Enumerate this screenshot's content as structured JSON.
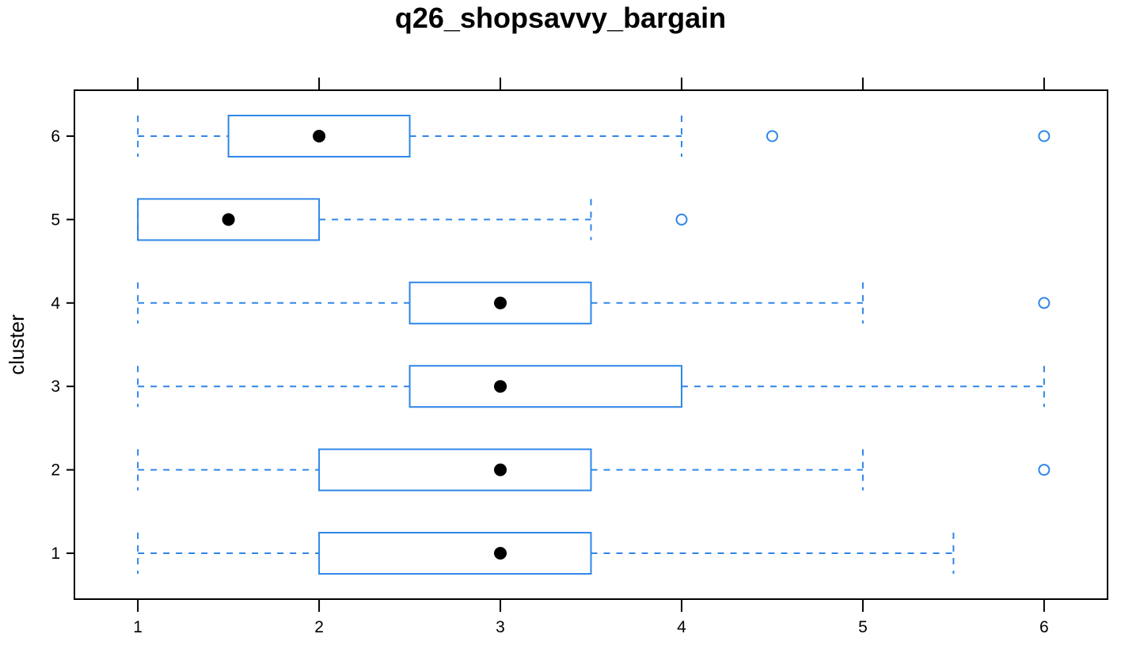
{
  "chart_data": {
    "type": "boxplot",
    "title": "q26_shopsavvy_bargain",
    "xlabel": "",
    "ylabel": "cluster",
    "xlim": [
      0.65,
      6.35
    ],
    "ylim": [
      0.45,
      6.55
    ],
    "x_ticks": [
      "1",
      "2",
      "3",
      "4",
      "5",
      "6"
    ],
    "color": "#2f86e8",
    "median_color": "#000000",
    "orientation": "horizontal",
    "categories": [
      "1",
      "2",
      "3",
      "4",
      "5",
      "6"
    ],
    "boxes": [
      {
        "category": "1",
        "whisker_low": 1,
        "q1": 2,
        "median": 3,
        "q3": 3.5,
        "whisker_high": 5.5,
        "outliers": []
      },
      {
        "category": "2",
        "whisker_low": 1,
        "q1": 2,
        "median": 3,
        "q3": 3.5,
        "whisker_high": 5,
        "outliers": [
          6
        ]
      },
      {
        "category": "3",
        "whisker_low": 1,
        "q1": 2.5,
        "median": 3,
        "q3": 4,
        "whisker_high": 6,
        "outliers": []
      },
      {
        "category": "4",
        "whisker_low": 1,
        "q1": 2.5,
        "median": 3,
        "q3": 3.5,
        "whisker_high": 5,
        "outliers": [
          6
        ]
      },
      {
        "category": "5",
        "whisker_low": 1,
        "q1": 1,
        "median": 1.5,
        "q3": 2,
        "whisker_high": 3.5,
        "outliers": [
          4
        ]
      },
      {
        "category": "6",
        "whisker_low": 1,
        "q1": 1.5,
        "median": 2,
        "q3": 2.5,
        "whisker_high": 4,
        "outliers": [
          4.5,
          6
        ]
      }
    ]
  }
}
